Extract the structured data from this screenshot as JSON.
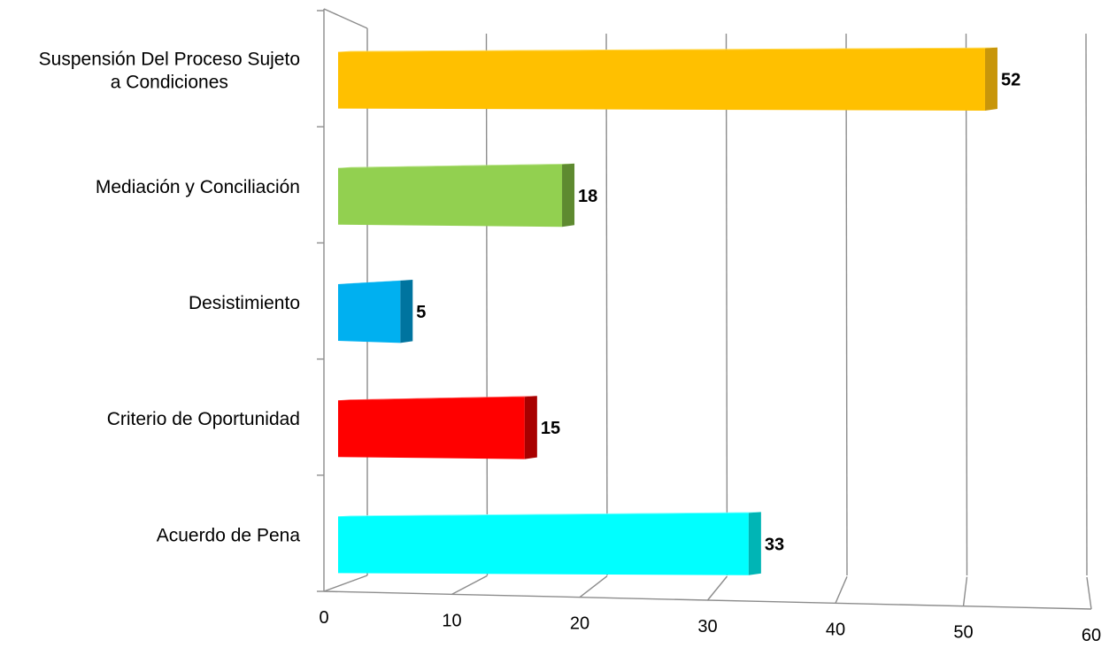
{
  "chart_data": {
    "type": "bar",
    "orientation": "horizontal",
    "style": "3d",
    "categories": [
      [
        "Suspensión Del Proceso Sujeto",
        "a Condiciones"
      ],
      [
        "Mediación y Conciliación"
      ],
      [
        "Desistimiento"
      ],
      [
        "Criterio de Oportunidad"
      ],
      [
        "Acuerdo de Pena"
      ]
    ],
    "values": [
      52,
      18,
      5,
      15,
      33
    ],
    "xlim": [
      0,
      60
    ],
    "ticks": [
      "0",
      "10",
      "20",
      "30",
      "40",
      "50",
      "60"
    ],
    "grid": true,
    "legend": "none",
    "colors": [
      {
        "front": "#ffc000",
        "side": "#c8960a",
        "top": "#ffd84a"
      },
      {
        "front": "#92d050",
        "side": "#5e8a30",
        "top": "#b4e27e"
      },
      {
        "front": "#00b0f0",
        "side": "#00749f",
        "top": "#5cd0f8"
      },
      {
        "front": "#ff0000",
        "side": "#a80000",
        "top": "#ff5a5a"
      },
      {
        "front": "#00ffff",
        "side": "#00b5b5",
        "top": "#7fffff"
      }
    ]
  }
}
